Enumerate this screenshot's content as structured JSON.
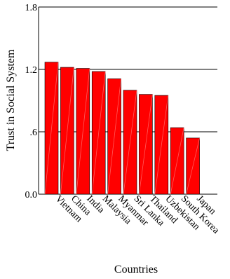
{
  "chart_data": {
    "type": "bar",
    "title": "",
    "xlabel": "Countries",
    "ylabel": "Trust in Social System",
    "categories": [
      "Vietnam",
      "China",
      "India",
      "Malaysia",
      "Myanmar",
      "Sri Lanka",
      "Thailand",
      "Uzbekistan",
      "South Korea",
      "Japan"
    ],
    "values": [
      1.27,
      1.22,
      1.21,
      1.18,
      1.11,
      1.0,
      0.96,
      0.95,
      0.64,
      0.54
    ],
    "ylim": [
      0,
      1.8
    ],
    "yticks": [
      0.0,
      0.6,
      1.2,
      1.8
    ],
    "ytick_labels": [
      "0.0",
      ".6",
      "1.2",
      "1.8"
    ],
    "grid": true,
    "bar_color": "#ff0000",
    "bar_edge_color": "#000000",
    "legend": "none"
  }
}
